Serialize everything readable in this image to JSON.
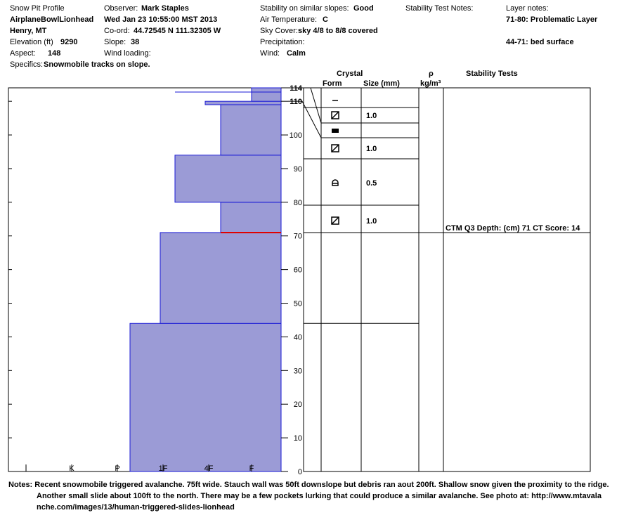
{
  "header": {
    "title": "Snow Pit Profile",
    "location": "AirplaneBowlLionhead",
    "region": "Henry, MT",
    "elevation_label": "Elevation (ft)",
    "elevation": "9290",
    "aspect_label": "Aspect:",
    "aspect": "148",
    "specifics_label": "Specifics:",
    "specifics": "Snowmobile tracks on slope.",
    "observer_label": "Observer:",
    "observer": "Mark Staples",
    "datetime": "Wed Jan 23 10:55:00 MST 2013",
    "coord_label": "Co-ord:",
    "coord": "44.72545 N 111.32305 W",
    "slope_label": "Slope:",
    "slope": "38",
    "wind_loading_label": "Wind loading:",
    "stability_label": "Stability on similar slopes:",
    "stability": "Good",
    "air_temp_label": "Air Temperature:",
    "air_temp": "C",
    "sky_label": "Sky Cover:",
    "sky": "sky 4/8 to 8/8 covered",
    "precip_label": "Precipitation:",
    "wind_label": "Wind:",
    "wind": "Calm",
    "stab_notes_label": "Stability Test Notes:",
    "layer_notes_label": "Layer notes:",
    "layer_note_1": "71-80: Problematic Layer",
    "layer_note_2": "44-71: bed surface"
  },
  "columns": {
    "crystal": "Crystal",
    "form": "Form",
    "size": "Size (mm)",
    "rho": "ρ",
    "rho_unit": "kg/m³",
    "stability_tests": "Stability Tests"
  },
  "notes": {
    "label": "Notes:",
    "line1": "Recent snowmobile triggered avalanche. 75ft wide. Stauch wall was 50ft downslope but debris ran aout 200ft.  Shallow snow given the proximity to the ridge.",
    "line2": "Another small slide about 100ft to the north. There may be a few pockets lurking that could produce a similar avalanche. See photo at: http://www.mtavala",
    "line3": "nche.com/images/13/human-triggered-slides-lionhead"
  },
  "colors": {
    "hardness_fill": "#9b9bd6",
    "hardness_edge": "#1a1ad6",
    "problem_line": "#e00000"
  },
  "chart_data": {
    "type": "bar",
    "title": "Snow Pit Profile",
    "depth_axis": {
      "ylim": [
        0,
        114
      ],
      "ticks": [
        0,
        10,
        20,
        30,
        40,
        50,
        60,
        70,
        80,
        90,
        100,
        110,
        114
      ]
    },
    "hardness_axis": {
      "categories": [
        "I",
        "K",
        "P",
        "1F",
        "4F",
        "F"
      ]
    },
    "hardness_layers": [
      {
        "bottom": 0,
        "top": 44,
        "hardness": "P+"
      },
      {
        "bottom": 44,
        "top": 71,
        "hardness": "1F+"
      },
      {
        "bottom": 71,
        "top": 80,
        "hardness": "4F-"
      },
      {
        "bottom": 80,
        "top": 94,
        "hardness": "1F-"
      },
      {
        "bottom": 94,
        "top": 109,
        "hardness": "4F-"
      },
      {
        "bottom": 109,
        "top": 110,
        "hardness": "F-"
      },
      {
        "bottom": 110,
        "top": 114,
        "hardness": "F"
      }
    ],
    "problematic_interface": 71,
    "crystal_layers": [
      {
        "bottom": 107,
        "top": 114,
        "form": "new-snow",
        "size": ""
      },
      {
        "bottom": 104,
        "top": 110,
        "form": "faceted",
        "size": "1.0"
      },
      {
        "bottom": 100,
        "top": 104,
        "form": "crust",
        "size": ""
      },
      {
        "bottom": 94,
        "top": 100,
        "form": "faceted",
        "size": "1.0"
      },
      {
        "bottom": 80,
        "top": 94,
        "form": "depth-hoar",
        "size": "0.5"
      },
      {
        "bottom": 71,
        "top": 80,
        "form": "faceted",
        "size": "1.0"
      },
      {
        "bottom": 44,
        "top": 71,
        "form": "",
        "size": ""
      },
      {
        "bottom": 0,
        "top": 44,
        "form": "",
        "size": ""
      }
    ],
    "stability_tests": [
      {
        "depth": 71,
        "text": "CTM Q3 Depth: (cm) 71 CT Score: 14"
      }
    ]
  }
}
